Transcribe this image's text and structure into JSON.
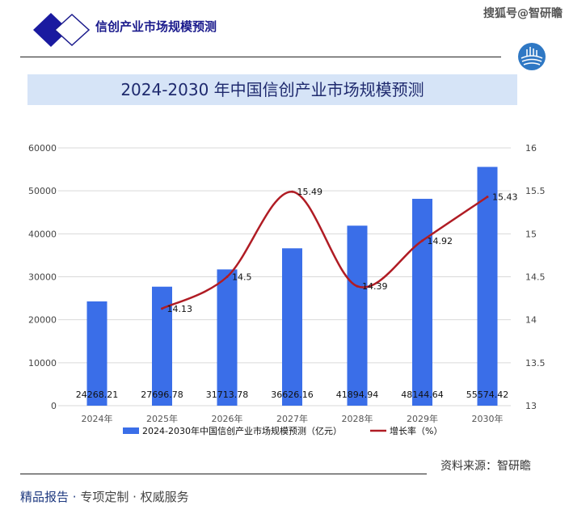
{
  "header": {
    "brand": "信创产业市场规模预测",
    "watermark": "搜狐号@智研瞻"
  },
  "title_band": "2024-2030 年中国信创产业市场规模预测",
  "chart_data": {
    "type": "bar+line",
    "categories": [
      "2024年",
      "2025年",
      "2026年",
      "2027年",
      "2028年",
      "2029年",
      "2030年"
    ],
    "series": [
      {
        "name": "2024-2030年中国信创产业市场规模预测（亿元）",
        "type": "bar",
        "axis": "left",
        "color": "#3a6ee8",
        "values": [
          24268.21,
          27696.78,
          31713.78,
          36626.16,
          41894.94,
          48144.64,
          55574.42
        ]
      },
      {
        "name": "增长率（%）",
        "type": "line",
        "axis": "right",
        "color": "#b01c24",
        "values": [
          null,
          14.13,
          14.5,
          15.49,
          14.39,
          14.92,
          15.43
        ]
      }
    ],
    "left_axis": {
      "range": [
        0,
        60000
      ],
      "ticks": [
        "0",
        "10000",
        "20000",
        "30000",
        "40000",
        "50000",
        "60000"
      ]
    },
    "right_axis": {
      "range": [
        13,
        16
      ],
      "ticks": [
        "13",
        "13.5",
        "14",
        "14.5",
        "15",
        "15.5",
        "16"
      ]
    },
    "grid": true,
    "legend": "bottom"
  },
  "source": "资料来源：智研瞻",
  "footer": {
    "a": "精品报告 · ",
    "b": "专项定制 · 权威服务"
  }
}
